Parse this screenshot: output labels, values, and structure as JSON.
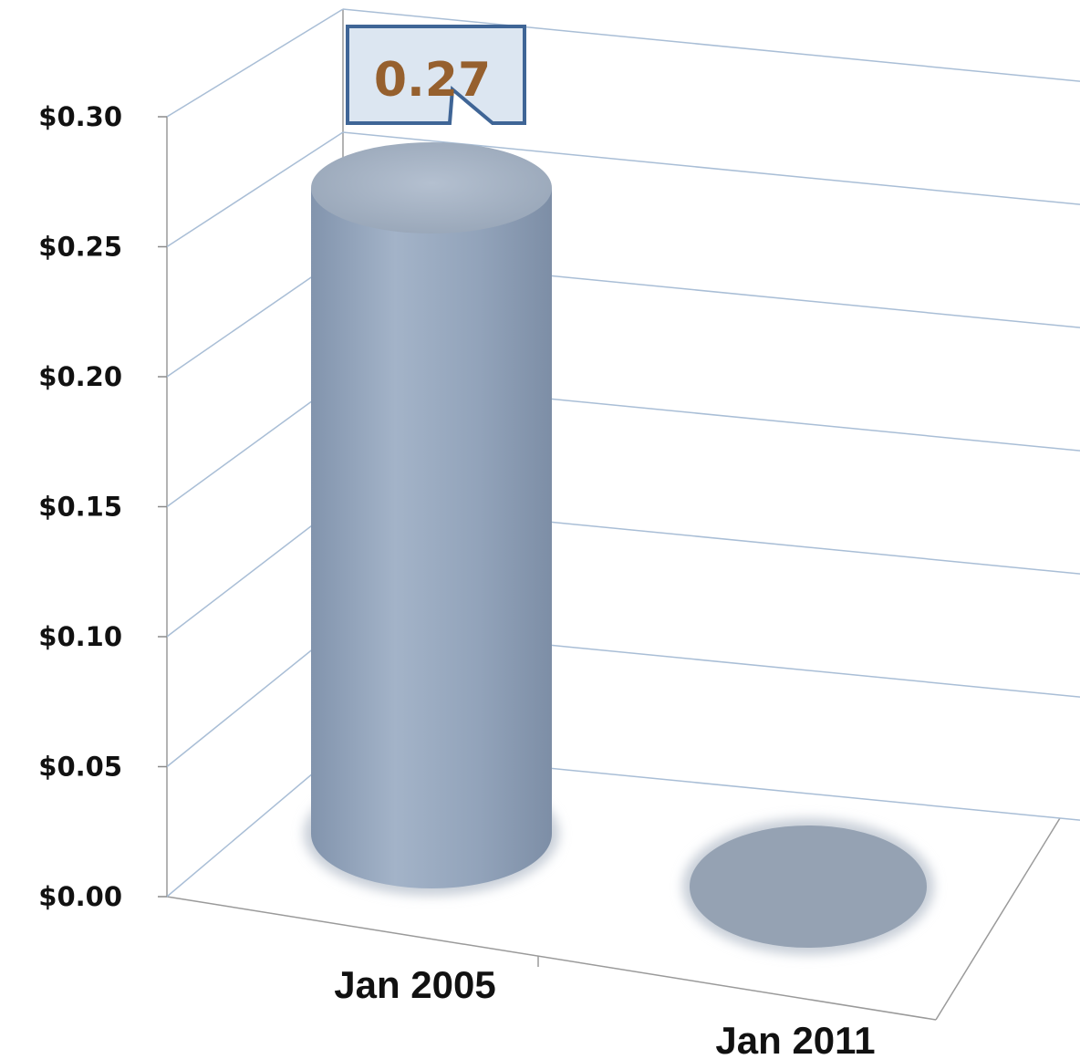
{
  "chart_data": {
    "type": "bar",
    "title": "",
    "xlabel": "",
    "ylabel": "",
    "categories": [
      "Jan 2005",
      "Jan 2011"
    ],
    "values": [
      0.27,
      0.0
    ],
    "ylim": [
      0,
      0.3
    ],
    "yticks": [
      0.0,
      0.05,
      0.1,
      0.15,
      0.2,
      0.25,
      0.3
    ],
    "ytick_labels": [
      "$0.00",
      "$0.05",
      "$0.10",
      "$0.15",
      "$0.20",
      "$0.25",
      "$0.30"
    ],
    "grid": true,
    "style": "3d-cylinder",
    "annotations": [
      {
        "category": "Jan 2005",
        "text": "0.27"
      }
    ],
    "colors": {
      "bar": "#98a8bf",
      "gridline": "#a9bed6",
      "callout_fill": "#dce6f1",
      "callout_border": "#3f6596",
      "callout_text": "#96602e"
    }
  }
}
